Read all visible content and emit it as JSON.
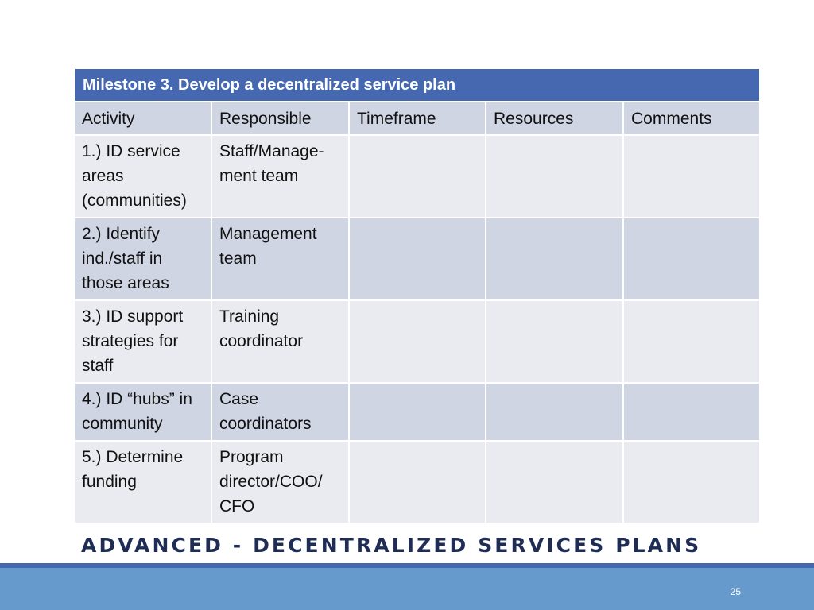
{
  "table": {
    "title": "Milestone 3.  Develop a decentralized service plan",
    "headers": [
      "Activity",
      "Responsible",
      "Timeframe",
      "Resources",
      "Comments"
    ],
    "rows": [
      {
        "activity": "1.) ID service areas (communities)",
        "responsible": "Staff/Manage-ment team",
        "timeframe": "",
        "resources": "",
        "comments": ""
      },
      {
        "activity": "2.) Identify ind./staff in those areas",
        "responsible": "Management team",
        "timeframe": "",
        "resources": "",
        "comments": ""
      },
      {
        "activity": "3.) ID support strategies for staff",
        "responsible": "Training coordinator",
        "timeframe": "",
        "resources": "",
        "comments": ""
      },
      {
        "activity": "4.) ID “hubs” in community",
        "responsible": "Case coordinators",
        "timeframe": "",
        "resources": "",
        "comments": ""
      },
      {
        "activity": "5.) Determine funding",
        "responsible": "Program director/COO/ CFO",
        "timeframe": "",
        "resources": "",
        "comments": ""
      }
    ]
  },
  "footer": {
    "title": "ADVANCED  - DECENTRALIZED SERVICES PLANS",
    "page_number": "25"
  },
  "colors": {
    "title_bar": "#4668b0",
    "header_row": "#cfd5e3",
    "row_light": "#e9ebf1",
    "row_dark": "#cfd5e3",
    "footer_bar": "#6699cc",
    "footer_title_text": "#1f2d55"
  }
}
